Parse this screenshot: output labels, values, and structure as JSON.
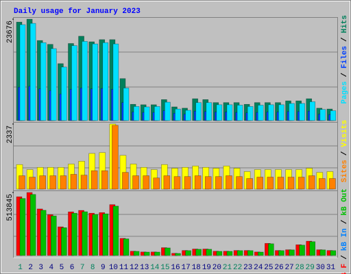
{
  "chart_data": [
    {
      "type": "bar",
      "title": "Daily usage for January 2023",
      "title_color": "#0000ff",
      "ylim": [
        0,
        23676
      ],
      "yticks": [
        23676
      ],
      "legend_separator": "/",
      "legend_reversed": true,
      "series": [
        {
          "name": "Hits",
          "color": "#00805c",
          "values": [
            23000,
            23676,
            18700,
            17800,
            13300,
            18000,
            19700,
            18400,
            18900,
            18900,
            9800,
            3800,
            3700,
            3700,
            4900,
            3200,
            2900,
            5100,
            4900,
            4200,
            4200,
            4200,
            3800,
            4200,
            4200,
            4200,
            4600,
            4600,
            5100,
            2900,
            2700
          ]
        },
        {
          "name": "Files",
          "color": "#0040ff",
          "values": [
            7800,
            8000,
            7400,
            7000,
            6200,
            7300,
            7600,
            7400,
            7500,
            7300,
            4200,
            2000,
            1900,
            1900,
            2300,
            1700,
            1500,
            2200,
            2100,
            2000,
            2000,
            1900,
            1800,
            1900,
            2000,
            2000,
            2100,
            2100,
            2200,
            1500,
            1400
          ]
        },
        {
          "name": "Pages",
          "color": "#00e0ff",
          "values": [
            22400,
            22700,
            18200,
            16800,
            12500,
            17500,
            18500,
            17900,
            18200,
            17900,
            7600,
            3300,
            3200,
            3300,
            4300,
            2700,
            2400,
            4200,
            4200,
            3700,
            3700,
            3600,
            3300,
            3600,
            3700,
            3700,
            4000,
            4000,
            4400,
            2600,
            2300
          ]
        }
      ]
    },
    {
      "type": "bar",
      "ylim": [
        0,
        2337
      ],
      "yticks": [
        2337
      ],
      "legend_separator": "/",
      "legend_reversed": true,
      "series": [
        {
          "name": "Visits",
          "color": "#ffff00",
          "values": [
            880,
            700,
            780,
            780,
            780,
            900,
            1000,
            1280,
            1310,
            2337,
            1210,
            900,
            780,
            700,
            880,
            750,
            780,
            830,
            780,
            750,
            830,
            750,
            630,
            700,
            700,
            700,
            700,
            700,
            750,
            600,
            630
          ]
        },
        {
          "name": "Sites",
          "color": "#ff8000",
          "values": [
            480,
            430,
            480,
            480,
            480,
            530,
            500,
            660,
            660,
            2290,
            600,
            480,
            480,
            400,
            480,
            450,
            450,
            480,
            450,
            450,
            480,
            450,
            380,
            430,
            430,
            430,
            430,
            430,
            480,
            380,
            380
          ]
        }
      ]
    },
    {
      "type": "bar",
      "ylim": [
        0,
        513845
      ],
      "yticks": [
        513845
      ],
      "legend_separator": "/",
      "legend_reversed": false,
      "categories": [
        "1",
        "2",
        "3",
        "4",
        "5",
        "6",
        "7",
        "8",
        "9",
        "10",
        "11",
        "12",
        "13",
        "14",
        "15",
        "16",
        "17",
        "18",
        "19",
        "20",
        "21",
        "22",
        "23",
        "24",
        "25",
        "26",
        "27",
        "28",
        "29",
        "30",
        "31"
      ],
      "category_colors": [
        "#00805c",
        "#000080",
        "#000080",
        "#000080",
        "#000080",
        "#000080",
        "#00805c",
        "#00805c",
        "#000080",
        "#000080",
        "#000080",
        "#000080",
        "#000080",
        "#00805c",
        "#00805c",
        "#000080",
        "#000080",
        "#000080",
        "#000080",
        "#000080",
        "#00805c",
        "#00805c",
        "#000080",
        "#000080",
        "#000080",
        "#000080",
        "#000080",
        "#00805c",
        "#00805c",
        "#000080",
        "#000080"
      ],
      "series": [
        {
          "name": "kB F",
          "color": "#ff0000",
          "values": [
            479000,
            513845,
            380000,
            333000,
            234000,
            356000,
            368000,
            345000,
            350000,
            415000,
            140000,
            35000,
            29000,
            29000,
            64000,
            18000,
            41000,
            53000,
            53000,
            35000,
            35000,
            41000,
            41000,
            29000,
            99000,
            41000,
            47000,
            88000,
            117000,
            47000,
            41000
          ]
        },
        {
          "name": "kB In",
          "color": "#0080ff",
          "values": [
            null,
            null,
            null,
            null,
            null,
            null,
            null,
            null,
            null,
            null,
            null,
            null,
            null,
            null,
            null,
            null,
            null,
            null,
            null,
            null,
            null,
            null,
            null,
            null,
            null,
            null,
            null,
            null,
            null,
            null,
            null
          ]
        },
        {
          "name": "kB Out",
          "color": "#00c000",
          "values": [
            465000,
            498000,
            369000,
            323000,
            227000,
            345000,
            357000,
            335000,
            340000,
            403000,
            136000,
            34000,
            28000,
            28000,
            62000,
            17000,
            40000,
            51000,
            51000,
            34000,
            34000,
            40000,
            40000,
            28000,
            96000,
            40000,
            46000,
            85000,
            113000,
            46000,
            40000
          ]
        }
      ]
    }
  ]
}
